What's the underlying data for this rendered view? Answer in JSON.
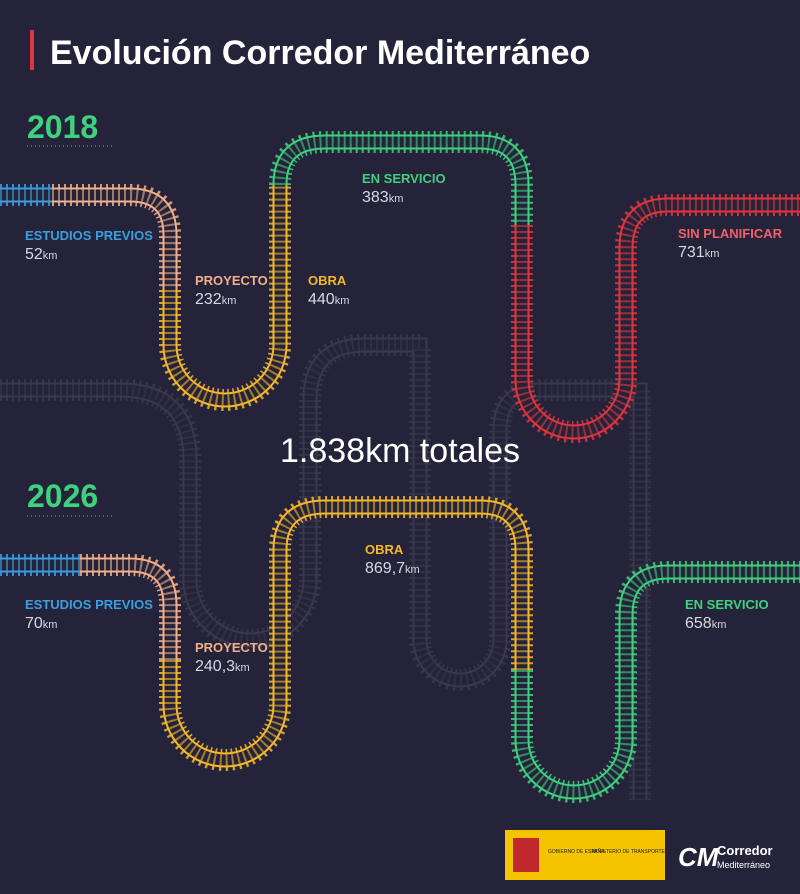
{
  "title": "Evolución Corredor Mediterráneo",
  "total": "1.838km totales",
  "years": [
    {
      "year": "2018",
      "stages": [
        {
          "label": "ESTUDIOS PREVIOS",
          "value": "52",
          "unit": "km"
        },
        {
          "label": "PROYECTO",
          "value": "232",
          "unit": "km"
        },
        {
          "label": "OBRA",
          "value": "440",
          "unit": "km"
        },
        {
          "label": "EN SERVICIO",
          "value": "383",
          "unit": "km"
        },
        {
          "label": "SIN PLANIFICAR",
          "value": "731",
          "unit": "km"
        }
      ]
    },
    {
      "year": "2026",
      "stages": [
        {
          "label": "ESTUDIOS PREVIOS",
          "value": "70",
          "unit": "km"
        },
        {
          "label": "PROYECTO",
          "value": "240,3",
          "unit": "km"
        },
        {
          "label": "OBRA",
          "value": "869,7",
          "unit": "km"
        },
        {
          "label": "EN SERVICIO",
          "value": "658",
          "unit": "km"
        }
      ]
    }
  ],
  "footer": {
    "gov": "GOBIERNO DE ESPAÑA",
    "ministry": "MINISTERIO DE TRANSPORTES Y MOVILIDAD SOSTENIBLE",
    "brand": "Corredor",
    "brand_sub": "Mediterráneo"
  }
}
